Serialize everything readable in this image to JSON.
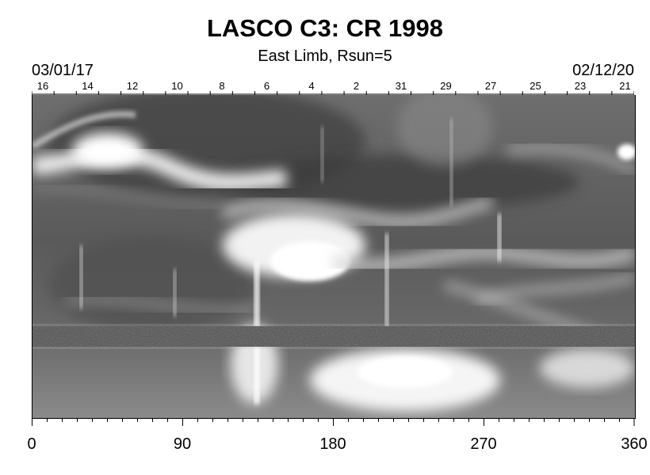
{
  "header": {
    "title": "LASCO C3: CR 1998",
    "subtitle": "East Limb, Rsun=5",
    "date_left": "03/01/17",
    "date_right": "02/12/20"
  },
  "top_axis": {
    "labels": [
      "16",
      "14",
      "12",
      "10",
      "8",
      "6",
      "4",
      "2",
      "31",
      "29",
      "27",
      "25",
      "23",
      "21"
    ]
  },
  "bottom_axis": {
    "labels": [
      "0",
      "90",
      "180",
      "270",
      "360"
    ]
  }
}
